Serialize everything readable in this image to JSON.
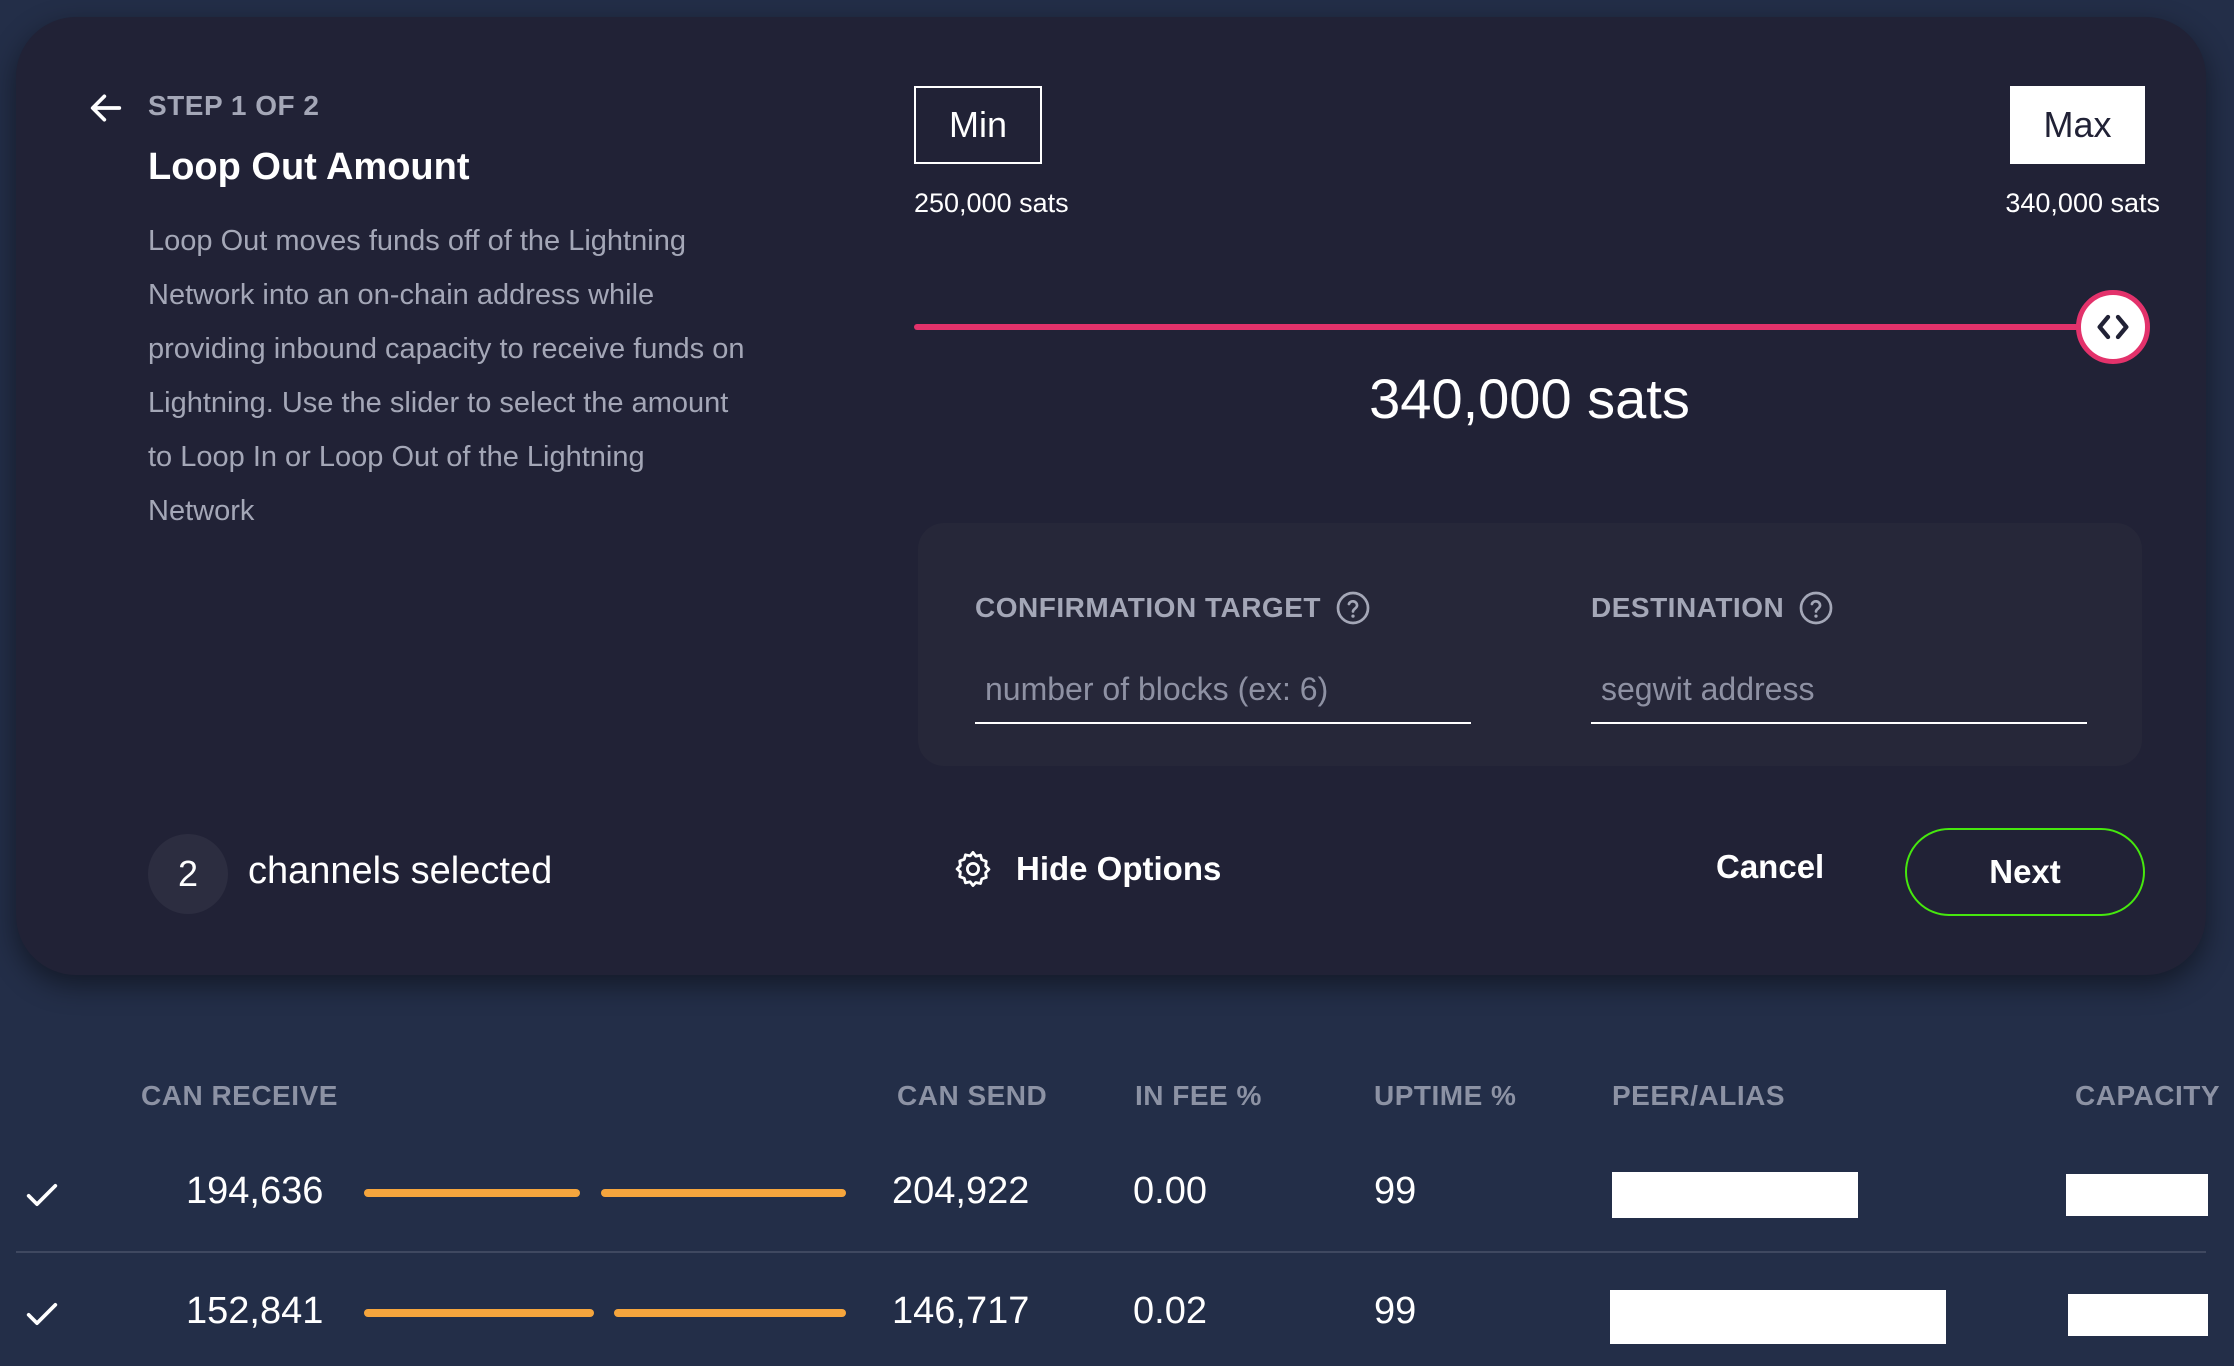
{
  "wizard": {
    "step": "STEP 1 OF 2",
    "title": "Loop Out Amount",
    "description": "Loop Out moves funds off of the Lightning Network into an on-chain address while providing inbound capacity to receive funds on Lightning. Use the slider to select the amount to Loop In or Loop Out of the Lightning Network",
    "min_label": "Min",
    "max_label": "Max",
    "min_value": "250,000 sats",
    "max_value": "340,000 sats",
    "selected_amount": "340,000 sats",
    "slider_fraction": 1.0,
    "options": {
      "confirmation_label": "CONFIRMATION TARGET",
      "confirmation_placeholder": "number of blocks (ex: 6)",
      "destination_label": "DESTINATION",
      "destination_placeholder": "segwit address"
    },
    "channel_count": "2",
    "channels_selected_text": "channels selected",
    "hide_options_label": "Hide Options",
    "cancel_label": "Cancel",
    "next_label": "Next"
  },
  "colors": {
    "slider_accent": "#e3326b",
    "next_border": "#46e80e",
    "balance_bar": "#f5a53d"
  },
  "table": {
    "headers": {
      "can_receive": "CAN RECEIVE",
      "can_send": "CAN SEND",
      "in_fee": "IN FEE %",
      "uptime": "UPTIME %",
      "peer_alias": "PEER/ALIAS",
      "capacity": "CAPACITY"
    },
    "rows": [
      {
        "selected": true,
        "can_receive": "194,636",
        "can_send": "204,922",
        "in_fee": "0.00",
        "uptime": "99"
      },
      {
        "selected": true,
        "can_receive": "152,841",
        "can_send": "146,717",
        "in_fee": "0.02",
        "uptime": "99"
      }
    ]
  }
}
